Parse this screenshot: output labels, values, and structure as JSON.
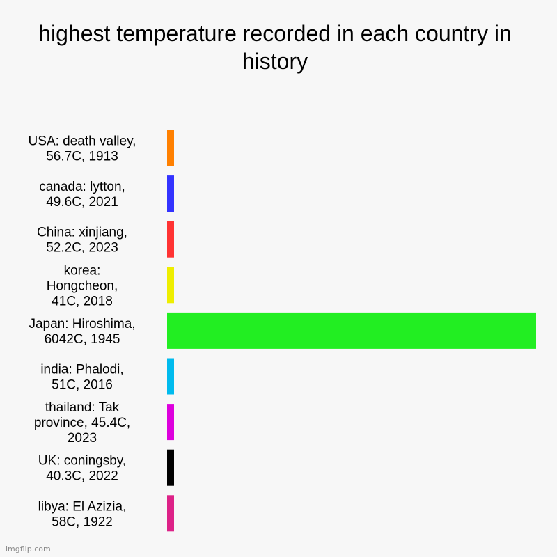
{
  "chart_data": {
    "type": "bar",
    "orientation": "horizontal",
    "title": "highest temperature recorded in each country in history",
    "categories": [
      "USA: death valley, 56.7C, 1913",
      "canada: lytton, 49.6C, 2021",
      "China: xinjiang, 52.2C, 2023",
      "korea: Hongcheon, 41C, 2018",
      "Japan: Hiroshima, 6042C, 1945",
      "india: Phalodi, 51C, 2016",
      "thailand: Tak province, 45.4C, 2023",
      "UK: coningsby, 40.3C, 2022",
      "libya: El Azizia, 58C, 1922"
    ],
    "category_lines": [
      [
        "USA: death valley,",
        "56.7C, 1913"
      ],
      [
        "canada: lytton,",
        "49.6C, 2021"
      ],
      [
        "China: xinjiang,",
        "52.2C, 2023"
      ],
      [
        "korea:",
        "Hongcheon,",
        "41C, 2018"
      ],
      [
        "Japan: Hiroshima,",
        "6042C, 1945"
      ],
      [
        "india: Phalodi,",
        "51C, 2016"
      ],
      [
        "thailand: Tak",
        "province, 45.4C,",
        "2023"
      ],
      [
        "UK: coningsby,",
        "40.3C, 2022"
      ],
      [
        "libya: El Azizia,",
        "58C, 1922"
      ]
    ],
    "values": [
      56.7,
      49.6,
      52.2,
      41,
      6042,
      51,
      45.4,
      40.3,
      58
    ],
    "colors": [
      "#ff8000",
      "#3333ff",
      "#ff3333",
      "#eeee00",
      "#22ee22",
      "#00bbee",
      "#dd00dd",
      "#000000",
      "#dd2288"
    ],
    "xlim": [
      0,
      6042
    ],
    "grid": false,
    "legend": "none"
  },
  "watermark": "imgflip.com"
}
